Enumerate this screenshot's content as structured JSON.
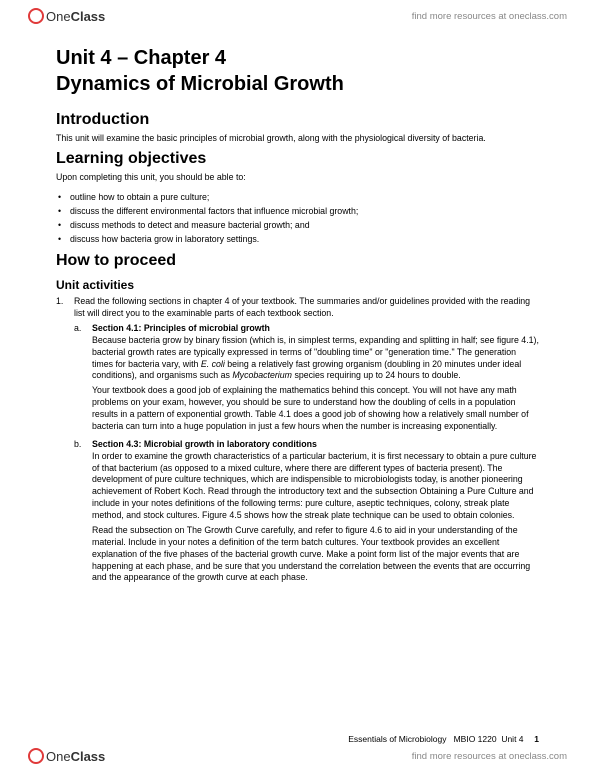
{
  "header": {
    "logo_text_thin": "One",
    "logo_text_bold": "Class",
    "link_text": "find more resources at oneclass.com"
  },
  "title": {
    "line1": "Unit 4 – Chapter 4",
    "line2": "Dynamics of Microbial Growth"
  },
  "intro": {
    "heading": "Introduction",
    "text": "This unit will examine the basic principles of microbial growth, along with the physiological diversity of bacteria."
  },
  "learning_objectives": {
    "heading": "Learning objectives",
    "lead": "Upon completing this unit, you should be able to:",
    "items": [
      "outline how to obtain a pure culture;",
      "discuss the different environmental factors that influence microbial growth;",
      "discuss methods to detect and measure bacterial growth; and",
      "discuss how bacteria grow in laboratory settings."
    ]
  },
  "how_to_proceed": {
    "heading": "How to proceed",
    "subheading": "Unit activities",
    "item1": {
      "num": "1.",
      "text": "Read the following sections in chapter 4 of your textbook. The summaries and/or guidelines provided with the reading list will direct you to the examinable parts of each textbook section.",
      "a": {
        "let": "a.",
        "title": "Section 4.1: Principles of microbial growth",
        "p1a": "Because bacteria grow by binary fission (which is, in simplest terms, expanding and splitting in half; see figure 4.1), bacterial growth rates are typically expressed in terms of \"doubling time\" or \"generation time.\" The generation times for bacteria vary, with ",
        "p1_em1": "E. coli",
        "p1b": " being a relatively fast growing organism (doubling in 20 minutes under ideal conditions), and organisms such as ",
        "p1_em2": "Mycobacterium",
        "p1c": " species requiring up to 24 hours to double.",
        "p2": "Your textbook does a good job of explaining the mathematics behind this concept. You will not have any math problems on your exam, however, you should be sure to understand how the doubling of cells in a population results in a pattern of exponential growth. Table 4.1 does a good job of showing how a relatively small number of bacteria can turn into a huge population in just a few hours when the number is increasing exponentially."
      },
      "b": {
        "let": "b.",
        "title": "Section 4.3: Microbial growth in laboratory conditions",
        "p1": "In order to examine the growth characteristics of a particular bacterium, it is first necessary to obtain a pure culture of that bacterium (as opposed to a mixed culture, where there are different types of bacteria present). The development of pure culture techniques, which are indispensible to microbiologists today, is another pioneering achievement of Robert Koch. Read through the introductory text and the subsection Obtaining a Pure Culture and include in your notes definitions of the following terms: pure culture, aseptic techniques, colony, streak plate method, and stock cultures. Figure 4.5 shows how the streak plate technique can be used to obtain colonies.",
        "p2": "Read the subsection on The Growth Curve carefully, and refer to figure 4.6 to aid in your understanding of the material. Include in your notes a definition of the term batch cultures. Your textbook provides an excellent explanation of the five phases of the bacterial growth curve. Make a point form list of the major events that are happening at each phase, and be sure that you understand the correlation between the events that are occurring and the appearance of the growth curve at each phase."
      }
    }
  },
  "footer": {
    "course_line_a": "Essentials of Microbiology",
    "course_line_b": "MBIO 1220",
    "course_line_c": "Unit 4",
    "page_num": "1",
    "link_text": "find more resources at oneclass.com"
  }
}
